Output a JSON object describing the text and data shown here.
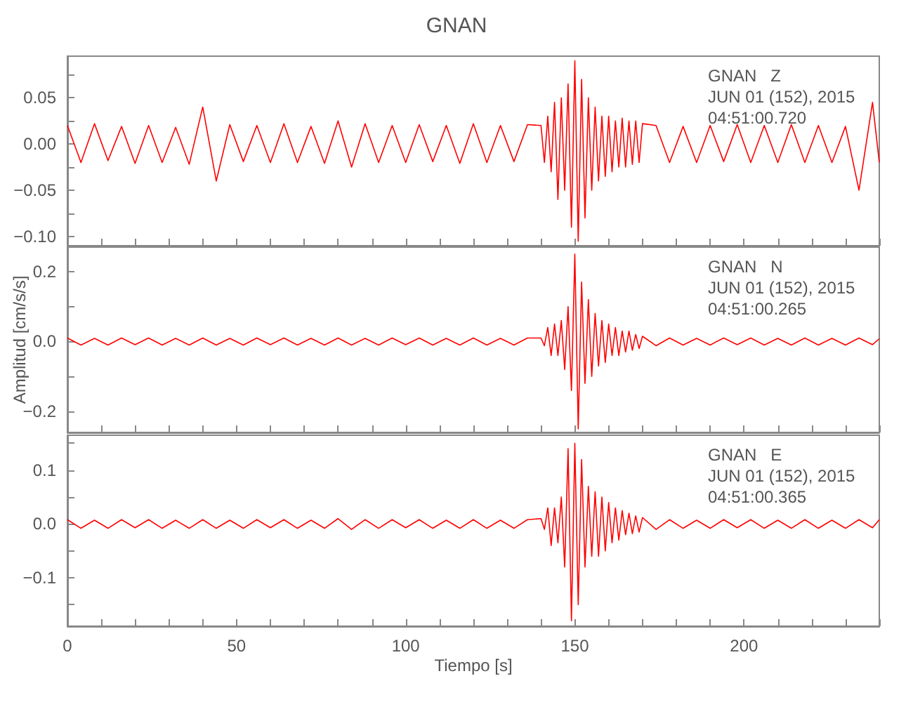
{
  "chart_data": [
    {
      "type": "line",
      "title": "GNAN",
      "annotations": [
        "GNAN   Z",
        "JUN 01 (152), 2015",
        "04:51:00.720"
      ],
      "tick_labels": "y",
      "grid": false,
      "marker": "none",
      "line_style": "solid",
      "xlim": [
        0,
        240
      ],
      "ylim": [
        -0.11,
        0.095
      ],
      "yticks": [
        {
          "value": -0.1,
          "label": "−0.10"
        },
        {
          "value": -0.075,
          "label": null
        },
        {
          "value": -0.05,
          "label": "−0.05"
        },
        {
          "value": -0.025,
          "label": null
        },
        {
          "value": 0,
          "label": "0.00"
        },
        {
          "value": 0.025,
          "label": null
        },
        {
          "value": 0.05,
          "label": "0.05"
        },
        {
          "value": 0.075,
          "label": null
        }
      ],
      "xticks": [
        0,
        10,
        20,
        30,
        40,
        50,
        60,
        70,
        80,
        90,
        100,
        110,
        120,
        130,
        140,
        150,
        160,
        170,
        180,
        190,
        200,
        210,
        220,
        230,
        240
      ],
      "x": [
        0,
        4,
        8,
        12,
        16,
        20,
        24,
        28,
        32,
        36,
        40,
        44,
        48,
        52,
        56,
        60,
        64,
        68,
        72,
        76,
        80,
        84,
        88,
        92,
        96,
        100,
        104,
        108,
        112,
        116,
        120,
        124,
        128,
        132,
        136,
        140,
        141,
        142,
        143,
        144,
        145,
        146,
        147,
        148,
        149,
        150,
        151,
        152,
        153,
        154,
        155,
        156,
        157,
        158,
        159,
        160,
        161,
        162,
        163,
        164,
        165,
        166,
        167,
        168,
        169,
        170,
        174,
        178,
        182,
        186,
        190,
        194,
        198,
        202,
        206,
        210,
        214,
        218,
        222,
        226,
        230,
        234,
        238,
        240
      ],
      "series": [
        {
          "color": "#ff0000",
          "values": [
            0.02,
            -0.02,
            0.022,
            -0.018,
            0.019,
            -0.021,
            0.02,
            -0.02,
            0.018,
            -0.022,
            0.04,
            -0.04,
            0.021,
            -0.019,
            0.02,
            -0.02,
            0.022,
            -0.02,
            0.019,
            -0.021,
            0.025,
            -0.025,
            0.022,
            -0.02,
            0.02,
            -0.02,
            0.021,
            -0.019,
            0.02,
            -0.021,
            0.022,
            -0.02,
            0.02,
            -0.019,
            0.021,
            0.02,
            -0.02,
            0.03,
            -0.03,
            0.045,
            -0.06,
            0.05,
            -0.05,
            0.065,
            -0.09,
            0.09,
            -0.105,
            0.07,
            -0.08,
            0.05,
            -0.05,
            0.04,
            -0.04,
            0.03,
            -0.035,
            0.03,
            -0.03,
            0.025,
            -0.025,
            0.028,
            -0.025,
            0.025,
            -0.022,
            0.025,
            -0.02,
            0.022,
            0.02,
            -0.02,
            0.019,
            -0.02,
            0.02,
            -0.019,
            0.021,
            -0.02,
            0.02,
            -0.02,
            0.021,
            -0.02,
            0.02,
            -0.02,
            0.019,
            -0.05,
            0.045,
            -0.02
          ]
        }
      ]
    },
    {
      "type": "line",
      "ylabel": "Amplitud [cm/s/s]",
      "annotations": [
        "GNAN   N",
        "JUN 01 (152), 2015",
        "04:51:00.265"
      ],
      "tick_labels": "y",
      "grid": false,
      "marker": "none",
      "line_style": "solid",
      "xlim": [
        0,
        240
      ],
      "ylim": [
        -0.26,
        0.27
      ],
      "yticks": [
        {
          "value": -0.2,
          "label": "−0.2"
        },
        {
          "value": -0.1,
          "label": null
        },
        {
          "value": 0,
          "label": "0.0"
        },
        {
          "value": 0.1,
          "label": null
        },
        {
          "value": 0.2,
          "label": "0.2"
        }
      ],
      "xticks": [
        0,
        10,
        20,
        30,
        40,
        50,
        60,
        70,
        80,
        90,
        100,
        110,
        120,
        130,
        140,
        150,
        160,
        170,
        180,
        190,
        200,
        210,
        220,
        230,
        240
      ],
      "x": [
        0,
        4,
        8,
        12,
        16,
        20,
        24,
        28,
        32,
        36,
        40,
        44,
        48,
        52,
        56,
        60,
        64,
        68,
        72,
        76,
        80,
        84,
        88,
        92,
        96,
        100,
        104,
        108,
        112,
        116,
        120,
        124,
        128,
        132,
        136,
        140,
        141,
        142,
        143,
        144,
        145,
        146,
        147,
        148,
        149,
        150,
        151,
        152,
        153,
        154,
        155,
        156,
        157,
        158,
        159,
        160,
        161,
        162,
        163,
        164,
        165,
        166,
        167,
        168,
        169,
        170,
        174,
        178,
        182,
        186,
        190,
        194,
        198,
        202,
        206,
        210,
        214,
        218,
        222,
        226,
        230,
        234,
        238,
        240
      ],
      "series": [
        {
          "color": "#ff0000",
          "values": [
            0.01,
            -0.01,
            0.009,
            -0.01,
            0.01,
            -0.009,
            0.01,
            -0.01,
            0.009,
            -0.01,
            0.01,
            -0.01,
            0.009,
            -0.01,
            0.01,
            -0.009,
            0.01,
            -0.01,
            0.009,
            -0.01,
            0.01,
            -0.01,
            0.009,
            -0.01,
            0.01,
            -0.009,
            0.01,
            -0.01,
            0.009,
            -0.01,
            0.01,
            -0.01,
            0.009,
            -0.01,
            0.01,
            0.01,
            -0.012,
            0.04,
            -0.04,
            0.05,
            -0.04,
            0.06,
            -0.08,
            0.1,
            -0.14,
            0.25,
            -0.25,
            0.17,
            -0.12,
            0.12,
            -0.1,
            0.08,
            -0.07,
            0.06,
            -0.06,
            0.05,
            -0.04,
            0.04,
            -0.04,
            0.03,
            -0.03,
            0.03,
            -0.025,
            0.02,
            -0.02,
            0.015,
            -0.012,
            0.01,
            -0.01,
            0.009,
            -0.01,
            0.01,
            -0.009,
            0.01,
            -0.01,
            0.009,
            -0.01,
            0.01,
            -0.01,
            0.009,
            -0.01,
            0.01,
            -0.009,
            0.008
          ]
        }
      ]
    },
    {
      "type": "line",
      "xlabel": "Tiempo [s]",
      "annotations": [
        "GNAN   E",
        "JUN 01 (152), 2015",
        "04:51:00.365"
      ],
      "grid": false,
      "marker": "none",
      "line_style": "solid",
      "xlim": [
        0,
        240
      ],
      "ylim": [
        -0.19,
        0.165
      ],
      "yticks": [
        {
          "value": -0.15,
          "label": null
        },
        {
          "value": -0.1,
          "label": "−0.1"
        },
        {
          "value": -0.05,
          "label": null
        },
        {
          "value": 0,
          "label": "0.0"
        },
        {
          "value": 0.05,
          "label": null
        },
        {
          "value": 0.1,
          "label": "0.1"
        },
        {
          "value": 0.15,
          "label": null
        }
      ],
      "xticks": [
        {
          "value": 0,
          "label": "0"
        },
        {
          "value": 10,
          "label": null
        },
        {
          "value": 20,
          "label": null
        },
        {
          "value": 30,
          "label": null
        },
        {
          "value": 40,
          "label": null
        },
        {
          "value": 50,
          "label": "50"
        },
        {
          "value": 60,
          "label": null
        },
        {
          "value": 70,
          "label": null
        },
        {
          "value": 80,
          "label": null
        },
        {
          "value": 90,
          "label": null
        },
        {
          "value": 100,
          "label": "100"
        },
        {
          "value": 110,
          "label": null
        },
        {
          "value": 120,
          "label": null
        },
        {
          "value": 130,
          "label": null
        },
        {
          "value": 140,
          "label": null
        },
        {
          "value": 150,
          "label": "150"
        },
        {
          "value": 160,
          "label": null
        },
        {
          "value": 170,
          "label": null
        },
        {
          "value": 180,
          "label": null
        },
        {
          "value": 190,
          "label": null
        },
        {
          "value": 200,
          "label": "200"
        },
        {
          "value": 210,
          "label": null
        },
        {
          "value": 220,
          "label": null
        },
        {
          "value": 230,
          "label": null
        },
        {
          "value": 240,
          "label": null
        }
      ],
      "x": [
        0,
        4,
        8,
        12,
        16,
        20,
        24,
        28,
        32,
        36,
        40,
        44,
        48,
        52,
        56,
        60,
        64,
        68,
        72,
        76,
        80,
        84,
        88,
        92,
        96,
        100,
        104,
        108,
        112,
        116,
        120,
        124,
        128,
        132,
        136,
        140,
        141,
        142,
        143,
        144,
        145,
        146,
        147,
        148,
        149,
        150,
        151,
        152,
        153,
        154,
        155,
        156,
        157,
        158,
        159,
        160,
        161,
        162,
        163,
        164,
        165,
        166,
        167,
        168,
        169,
        170,
        174,
        178,
        182,
        186,
        190,
        194,
        198,
        202,
        206,
        210,
        214,
        218,
        222,
        226,
        230,
        234,
        238,
        240
      ],
      "series": [
        {
          "color": "#ff0000",
          "values": [
            0.008,
            -0.008,
            0.007,
            -0.008,
            0.008,
            -0.007,
            0.008,
            -0.008,
            0.007,
            -0.008,
            0.008,
            -0.008,
            0.007,
            -0.008,
            0.008,
            -0.007,
            0.008,
            -0.008,
            0.007,
            -0.008,
            0.01,
            -0.01,
            0.008,
            -0.008,
            0.008,
            -0.007,
            0.008,
            -0.008,
            0.007,
            -0.008,
            0.008,
            -0.008,
            0.007,
            -0.008,
            0.008,
            0.01,
            -0.01,
            0.03,
            -0.04,
            0.03,
            -0.035,
            0.05,
            -0.08,
            0.14,
            -0.18,
            0.15,
            -0.15,
            0.12,
            -0.08,
            0.07,
            -0.06,
            0.06,
            -0.06,
            0.05,
            -0.05,
            0.04,
            -0.035,
            0.03,
            -0.03,
            0.025,
            -0.02,
            0.02,
            -0.018,
            0.015,
            -0.015,
            0.012,
            -0.01,
            0.008,
            -0.008,
            0.007,
            -0.008,
            0.008,
            -0.007,
            0.008,
            -0.008,
            0.007,
            -0.008,
            0.008,
            -0.008,
            0.007,
            -0.008,
            0.008,
            -0.007,
            0.008
          ]
        }
      ]
    }
  ]
}
